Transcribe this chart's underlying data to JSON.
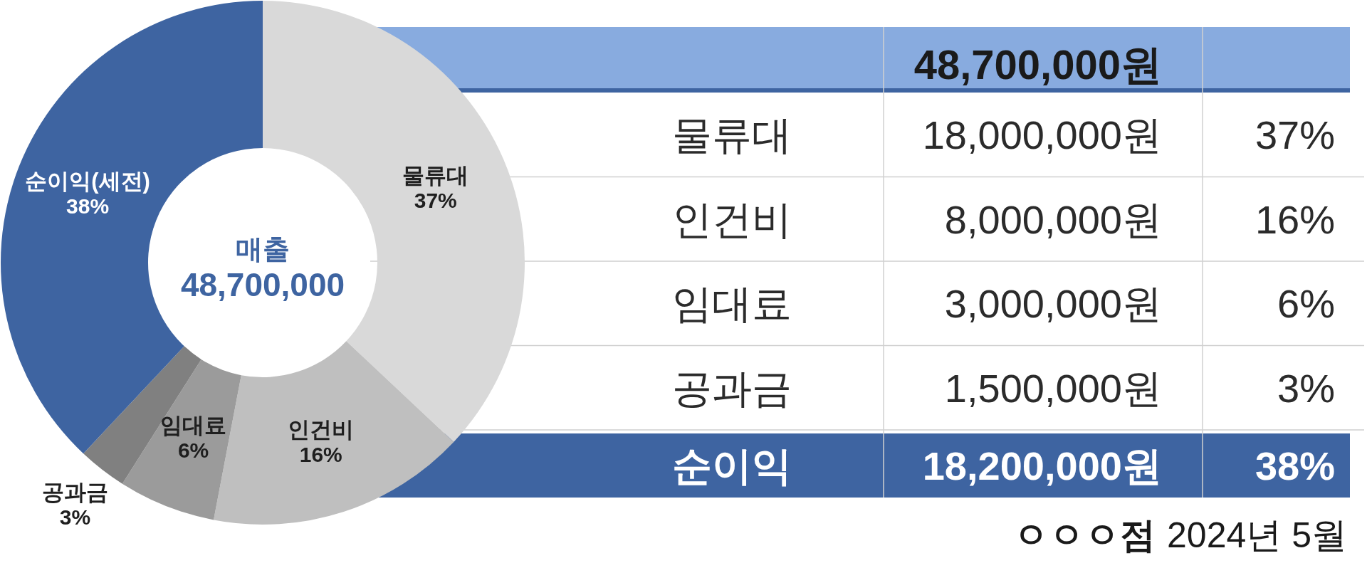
{
  "chart_data": [
    {
      "type": "donut",
      "categories": [
        "물류대",
        "인건비",
        "임대료",
        "공과금",
        "순이익(세전)"
      ],
      "values": [
        37,
        16,
        6,
        3,
        38
      ],
      "colors": [
        "#d9d9d9",
        "#bfbfbf",
        "#9b9b9b",
        "#808080",
        "#3e64a1"
      ],
      "value_labels": [
        "37%",
        "16%",
        "6%",
        "3%",
        "38%"
      ],
      "annotations": [
        "매출",
        "48,700,000"
      ]
    },
    {
      "type": "other",
      "title": "48,700,000원",
      "categories": [
        "물류대",
        "인건비",
        "임대료",
        "공과금",
        "순이익"
      ],
      "annotations": [
        "18,000,000원",
        "37%",
        "8,000,000원",
        "16%",
        "3,000,000원",
        "6%",
        "1,500,000원",
        "3%",
        "18,200,000원",
        "38%",
        "ㅇㅇㅇ점",
        "2024년 5월"
      ]
    }
  ]
}
